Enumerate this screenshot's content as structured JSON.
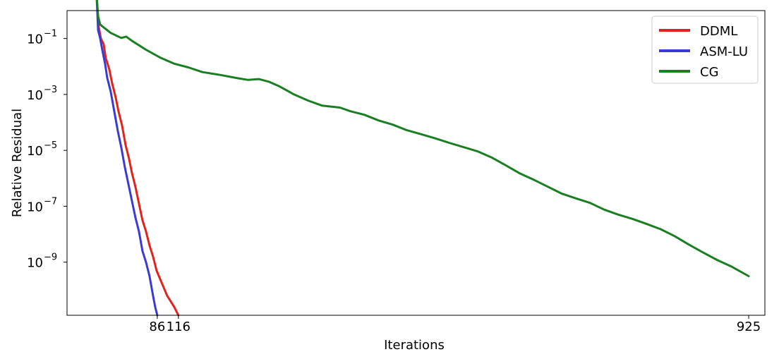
{
  "chart_data": {
    "type": "line",
    "xlabel": "Iterations",
    "ylabel": "Relative Residual",
    "xscale": "linear",
    "yscale": "log",
    "xlim": [
      -42,
      948
    ],
    "ylim_exponent": [
      -10.9,
      0.0
    ],
    "x_ticks": [
      {
        "value": 86,
        "label": "86"
      },
      {
        "value": 116,
        "label": "116"
      },
      {
        "value": 925,
        "label": "925"
      }
    ],
    "y_ticks": [
      {
        "exponent": -1,
        "base": "10",
        "exp_label": "−1"
      },
      {
        "exponent": -3,
        "base": "10",
        "exp_label": "−3"
      },
      {
        "exponent": -5,
        "base": "10",
        "exp_label": "−5"
      },
      {
        "exponent": -7,
        "base": "10",
        "exp_label": "−7"
      },
      {
        "exponent": -9,
        "base": "10",
        "exp_label": "−9"
      }
    ],
    "grid": false,
    "legend_position": "top-right",
    "series": [
      {
        "name": "DDML",
        "color": "#e3231b",
        "points": [
          [
            0,
            0.5
          ],
          [
            3,
            -0.6
          ],
          [
            6,
            -1.0
          ],
          [
            10,
            -1.2
          ],
          [
            13,
            -1.7
          ],
          [
            18,
            -2.1
          ],
          [
            22,
            -2.6
          ],
          [
            27,
            -3.1
          ],
          [
            31,
            -3.6
          ],
          [
            36,
            -4.1
          ],
          [
            41,
            -4.8
          ],
          [
            46,
            -5.3
          ],
          [
            50,
            -5.8
          ],
          [
            55,
            -6.3
          ],
          [
            60,
            -6.9
          ],
          [
            65,
            -7.5
          ],
          [
            70,
            -7.9
          ],
          [
            75,
            -8.4
          ],
          [
            80,
            -8.8
          ],
          [
            85,
            -9.3
          ],
          [
            90,
            -9.6
          ],
          [
            95,
            -9.9
          ],
          [
            100,
            -10.2
          ],
          [
            105,
            -10.4
          ],
          [
            110,
            -10.6
          ],
          [
            116,
            -10.9
          ]
        ]
      },
      {
        "name": "ASM-LU",
        "color": "#3a3ad6",
        "points": [
          [
            0,
            0.5
          ],
          [
            2,
            -0.7
          ],
          [
            5,
            -1.0
          ],
          [
            8,
            -1.4
          ],
          [
            12,
            -1.9
          ],
          [
            15,
            -2.4
          ],
          [
            20,
            -2.9
          ],
          [
            25,
            -3.6
          ],
          [
            30,
            -4.3
          ],
          [
            35,
            -4.9
          ],
          [
            40,
            -5.6
          ],
          [
            45,
            -6.2
          ],
          [
            50,
            -6.8
          ],
          [
            55,
            -7.4
          ],
          [
            60,
            -7.9
          ],
          [
            65,
            -8.6
          ],
          [
            70,
            -9.0
          ],
          [
            75,
            -9.5
          ],
          [
            80,
            -10.2
          ],
          [
            83,
            -10.6
          ],
          [
            86,
            -10.9
          ]
        ]
      },
      {
        "name": "CG",
        "color": "#1a7f23",
        "points": [
          [
            0,
            0.5
          ],
          [
            2,
            -0.2
          ],
          [
            5,
            -0.5
          ],
          [
            10,
            -0.6
          ],
          [
            20,
            -0.8
          ],
          [
            35,
            -0.98
          ],
          [
            42,
            -0.93
          ],
          [
            50,
            -1.08
          ],
          [
            70,
            -1.4
          ],
          [
            90,
            -1.68
          ],
          [
            110,
            -1.9
          ],
          [
            130,
            -2.03
          ],
          [
            150,
            -2.2
          ],
          [
            175,
            -2.3
          ],
          [
            200,
            -2.42
          ],
          [
            215,
            -2.48
          ],
          [
            230,
            -2.45
          ],
          [
            245,
            -2.55
          ],
          [
            260,
            -2.72
          ],
          [
            280,
            -3.0
          ],
          [
            300,
            -3.22
          ],
          [
            320,
            -3.4
          ],
          [
            345,
            -3.47
          ],
          [
            360,
            -3.6
          ],
          [
            380,
            -3.73
          ],
          [
            400,
            -3.93
          ],
          [
            420,
            -4.08
          ],
          [
            440,
            -4.28
          ],
          [
            460,
            -4.42
          ],
          [
            480,
            -4.57
          ],
          [
            500,
            -4.73
          ],
          [
            520,
            -4.88
          ],
          [
            540,
            -5.03
          ],
          [
            560,
            -5.25
          ],
          [
            580,
            -5.53
          ],
          [
            600,
            -5.82
          ],
          [
            620,
            -6.05
          ],
          [
            640,
            -6.3
          ],
          [
            660,
            -6.55
          ],
          [
            680,
            -6.72
          ],
          [
            700,
            -6.88
          ],
          [
            720,
            -7.12
          ],
          [
            740,
            -7.3
          ],
          [
            760,
            -7.45
          ],
          [
            780,
            -7.63
          ],
          [
            800,
            -7.82
          ],
          [
            820,
            -8.07
          ],
          [
            840,
            -8.37
          ],
          [
            860,
            -8.65
          ],
          [
            880,
            -8.92
          ],
          [
            900,
            -9.15
          ],
          [
            925,
            -9.5
          ]
        ]
      }
    ]
  }
}
